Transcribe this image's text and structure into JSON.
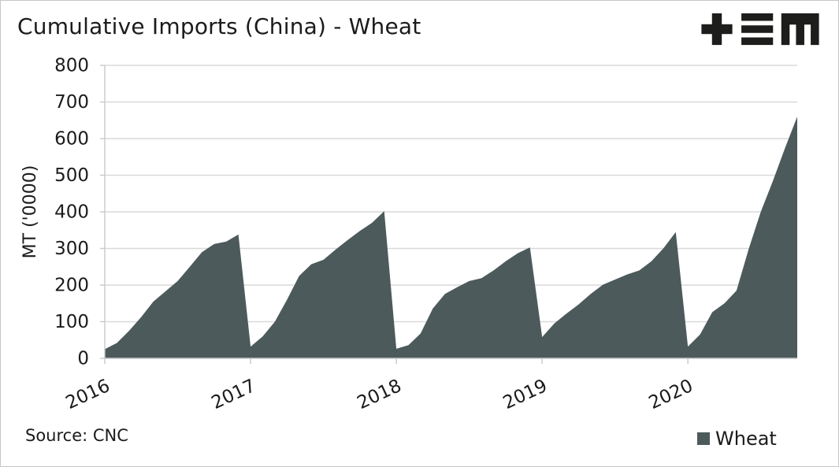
{
  "header": {
    "title": "Cumulative Imports (China) - Wheat"
  },
  "logo": {
    "name": "plus-bars-m-logo",
    "color": "#1d1d1b"
  },
  "footer": {
    "source": "Source: CNC"
  },
  "legend": {
    "items": [
      {
        "label": "Wheat",
        "color": "#4c5a5b"
      }
    ]
  },
  "colors": {
    "background": "#ffffff",
    "grid": "#d9d9d9",
    "axis": "#c6cac9",
    "tick": "#c6cac9",
    "text": "#1b1b1b",
    "area": "#4c5a5b"
  },
  "chart_data": {
    "type": "area",
    "title": "Cumulative Imports (China) - Wheat",
    "xlabel": "",
    "ylabel": "MT ('0000)",
    "ylim": [
      0,
      800
    ],
    "yticks": [
      0,
      100,
      200,
      300,
      400,
      500,
      600,
      700,
      800
    ],
    "grid": "horizontal-only",
    "legend_position": "bottom-right",
    "x_unit": "month",
    "x_range": "Jan 2016 - Oct 2020",
    "xtick_labels": [
      "2016",
      "2017",
      "2018",
      "2019",
      "2020"
    ],
    "xtick_month_indices": [
      0,
      12,
      24,
      36,
      48
    ],
    "series": [
      {
        "name": "Wheat",
        "color": "#4c5a5b",
        "values": [
          25,
          42,
          75,
          113,
          155,
          183,
          211,
          250,
          290,
          312,
          319,
          338,
          32,
          60,
          100,
          160,
          225,
          257,
          269,
          297,
          323,
          348,
          370,
          402,
          26,
          36,
          68,
          136,
          176,
          194,
          211,
          219,
          240,
          265,
          287,
          303,
          58,
          95,
          122,
          147,
          176,
          201,
          215,
          229,
          240,
          265,
          301,
          345,
          32,
          65,
          126,
          150,
          185,
          298,
          400,
          485,
          575,
          660
        ]
      }
    ]
  }
}
